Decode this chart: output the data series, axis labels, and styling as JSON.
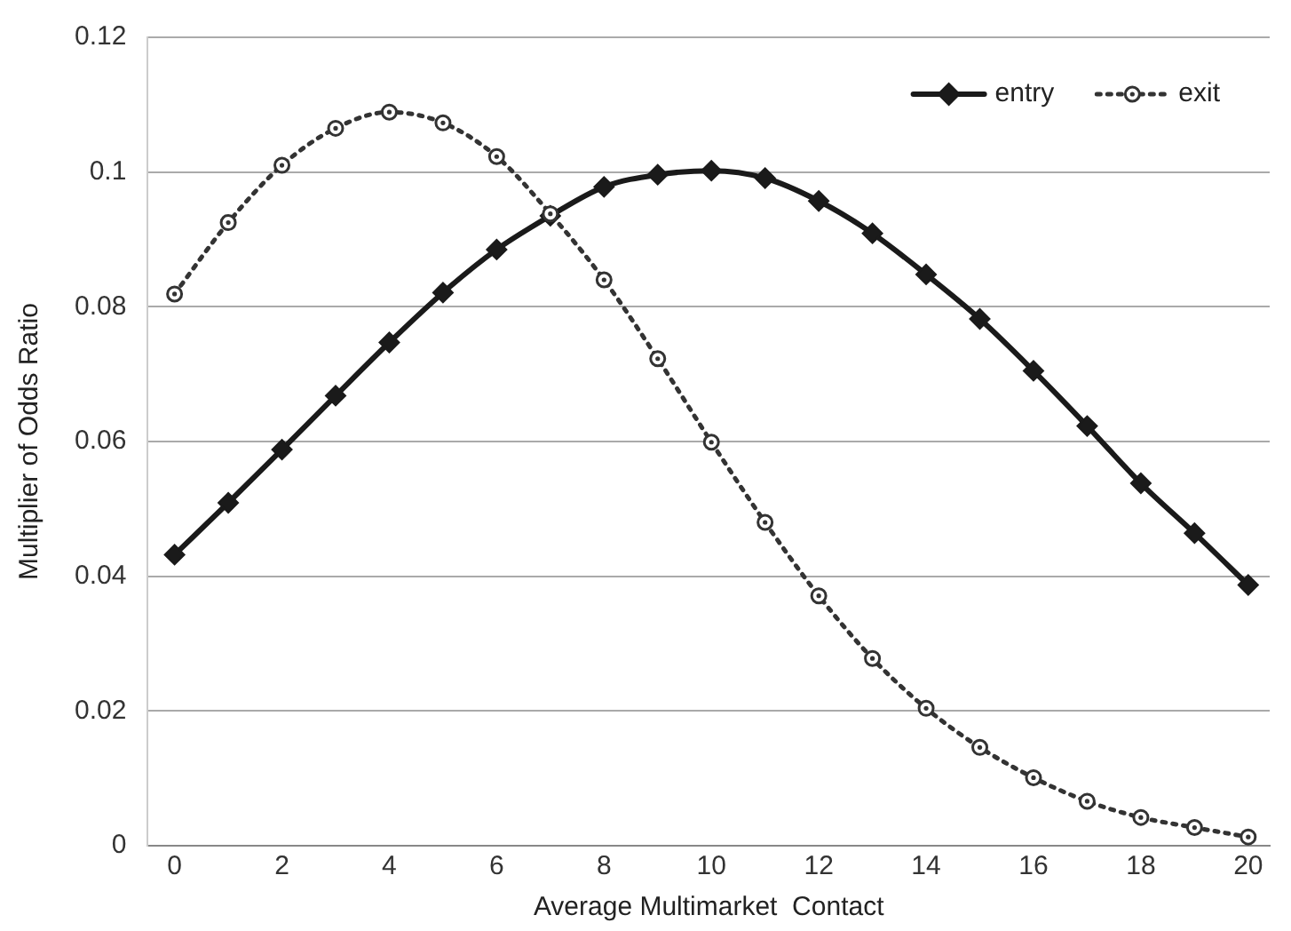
{
  "chart_data": {
    "type": "line",
    "xlabel": "Average Multimarket  Contact",
    "ylabel": "Multiplier of Odds Ratio",
    "x": [
      0,
      1,
      2,
      3,
      4,
      5,
      6,
      7,
      8,
      9,
      10,
      11,
      12,
      13,
      14,
      15,
      16,
      17,
      18,
      19,
      20
    ],
    "series": [
      {
        "name": "entry",
        "color": "#1a1a1a",
        "marker": "diamond",
        "line_style": "solid",
        "values": [
          0.0432,
          0.0509,
          0.0588,
          0.0668,
          0.0747,
          0.0821,
          0.0885,
          0.0935,
          0.0978,
          0.0996,
          0.1002,
          0.0991,
          0.0957,
          0.0909,
          0.0848,
          0.0782,
          0.0705,
          0.0623,
          0.0538,
          0.0464,
          0.0387
        ]
      },
      {
        "name": "exit",
        "color": "#333333",
        "marker": "circle",
        "line_style": "dotted",
        "values": [
          0.0819,
          0.0925,
          0.101,
          0.1065,
          0.1089,
          0.1073,
          0.1023,
          0.0938,
          0.084,
          0.0723,
          0.0599,
          0.048,
          0.0371,
          0.0278,
          0.0204,
          0.0146,
          0.0101,
          0.0066,
          0.0042,
          0.0027,
          0.0013
        ]
      }
    ],
    "xlim": [
      -0.5,
      20.4
    ],
    "xticks": [
      0,
      2,
      4,
      6,
      8,
      10,
      12,
      14,
      16,
      18,
      20
    ],
    "ylim": [
      0,
      0.12
    ],
    "yticks": [
      0,
      0.02,
      0.04,
      0.06,
      0.08,
      0.1,
      0.12
    ],
    "grid": "y",
    "legend": "top right"
  }
}
